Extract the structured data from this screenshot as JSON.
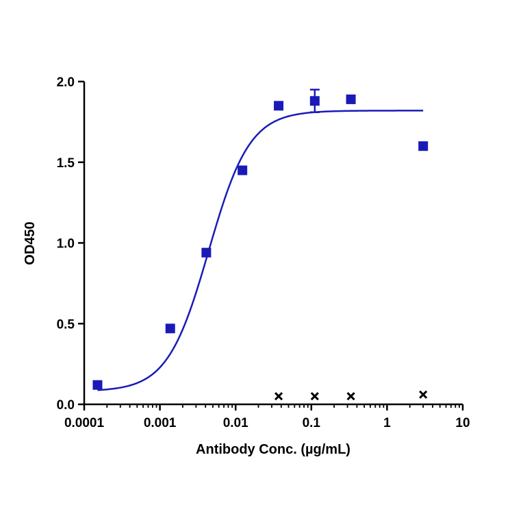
{
  "chart_data": {
    "type": "scatter",
    "title": "",
    "xlabel": "Antibody Conc. (µg/mL)",
    "ylabel": "OD450",
    "x_scale": "log",
    "xlim": [
      0.0001,
      10
    ],
    "ylim": [
      0,
      2.0
    ],
    "x_ticks": [
      0.0001,
      0.001,
      0.01,
      0.1,
      1,
      10
    ],
    "x_tick_labels": [
      "0.0001",
      "0.001",
      "0.01",
      "0.1",
      "1",
      "10"
    ],
    "y_ticks": [
      0,
      0.5,
      1.0,
      1.5,
      2.0
    ],
    "y_tick_labels": [
      "0.0",
      "0.5",
      "1.0",
      "1.5",
      "2.0"
    ],
    "grid": false,
    "legend": "none",
    "series": [
      {
        "marker": "square",
        "color": "#1a1ab8",
        "points": [
          {
            "x": 0.00015,
            "y": 0.12
          },
          {
            "x": 0.00137,
            "y": 0.47
          },
          {
            "x": 0.0041,
            "y": 0.94
          },
          {
            "x": 0.0123,
            "y": 1.45
          },
          {
            "x": 0.037,
            "y": 1.85
          },
          {
            "x": 0.111,
            "y": 1.88,
            "err": 0.07
          },
          {
            "x": 0.333,
            "y": 1.89
          },
          {
            "x": 3.0,
            "y": 1.6
          }
        ]
      },
      {
        "marker": "x",
        "color": "#000000",
        "points": [
          {
            "x": 0.037,
            "y": 0.05
          },
          {
            "x": 0.111,
            "y": 0.05
          },
          {
            "x": 0.333,
            "y": 0.05
          },
          {
            "x": 3.0,
            "y": 0.06
          }
        ]
      }
    ],
    "fit_curve": {
      "type": "4PL",
      "color": "#1a1ab8",
      "bottom": 0.08,
      "top": 1.82,
      "ec50": 0.0044,
      "hill": 1.6,
      "x_range": [
        0.00015,
        3.0
      ]
    }
  }
}
